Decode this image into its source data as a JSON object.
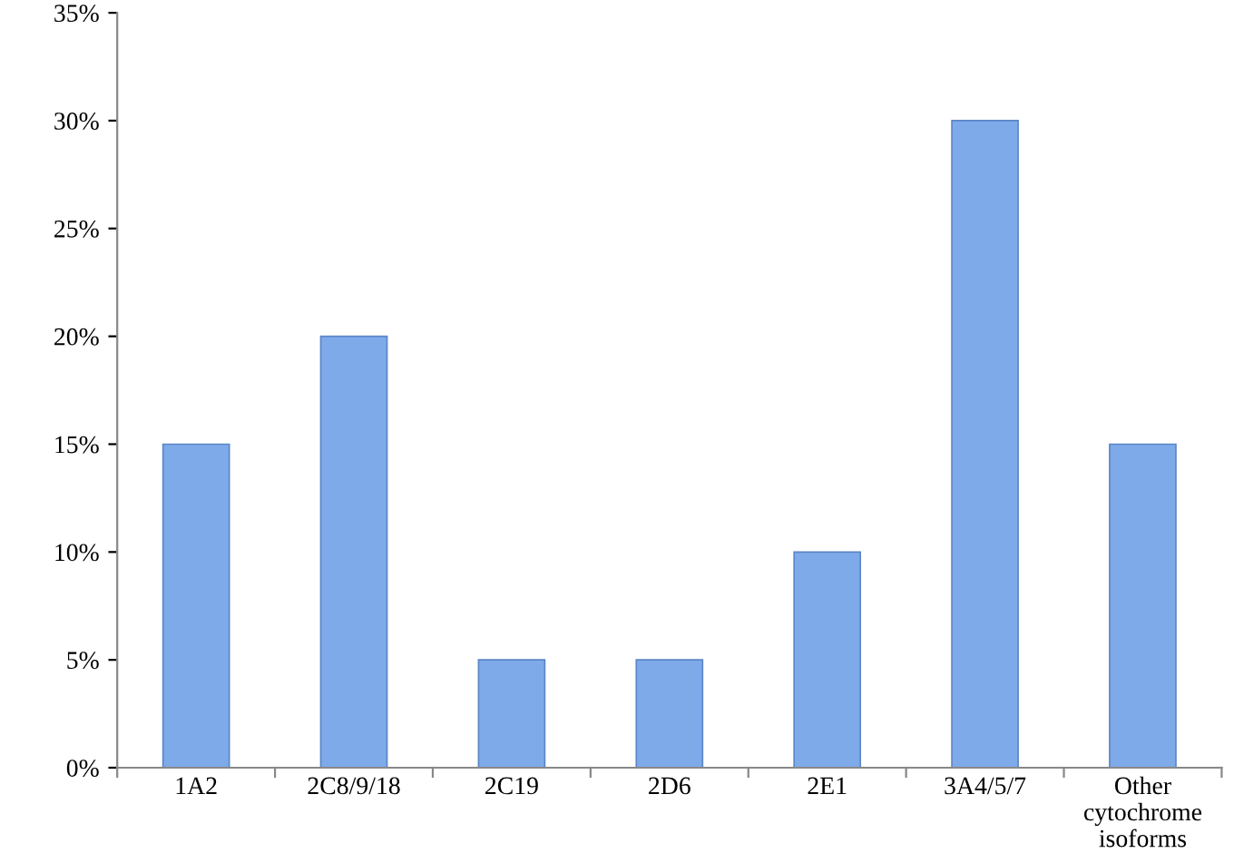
{
  "chart_data": {
    "type": "bar",
    "categories": [
      "1A2",
      "2C8/9/18",
      "2C19",
      "2D6",
      "2E1",
      "3A4/5/7",
      "Other cytochrome isoforms"
    ],
    "values": [
      15,
      20,
      5,
      5,
      10,
      30,
      15
    ],
    "color": "#7eaaea",
    "ylim": [
      0,
      35
    ],
    "yticks": [
      {
        "value": 0,
        "label": "0%"
      },
      {
        "value": 5,
        "label": "5%"
      },
      {
        "value": 10,
        "label": "10%"
      },
      {
        "value": 15,
        "label": "15%"
      },
      {
        "value": 20,
        "label": "20%"
      },
      {
        "value": 25,
        "label": "25%"
      },
      {
        "value": 30,
        "label": "30%"
      },
      {
        "value": 35,
        "label": "35%"
      }
    ],
    "grid": false,
    "legend": false
  }
}
